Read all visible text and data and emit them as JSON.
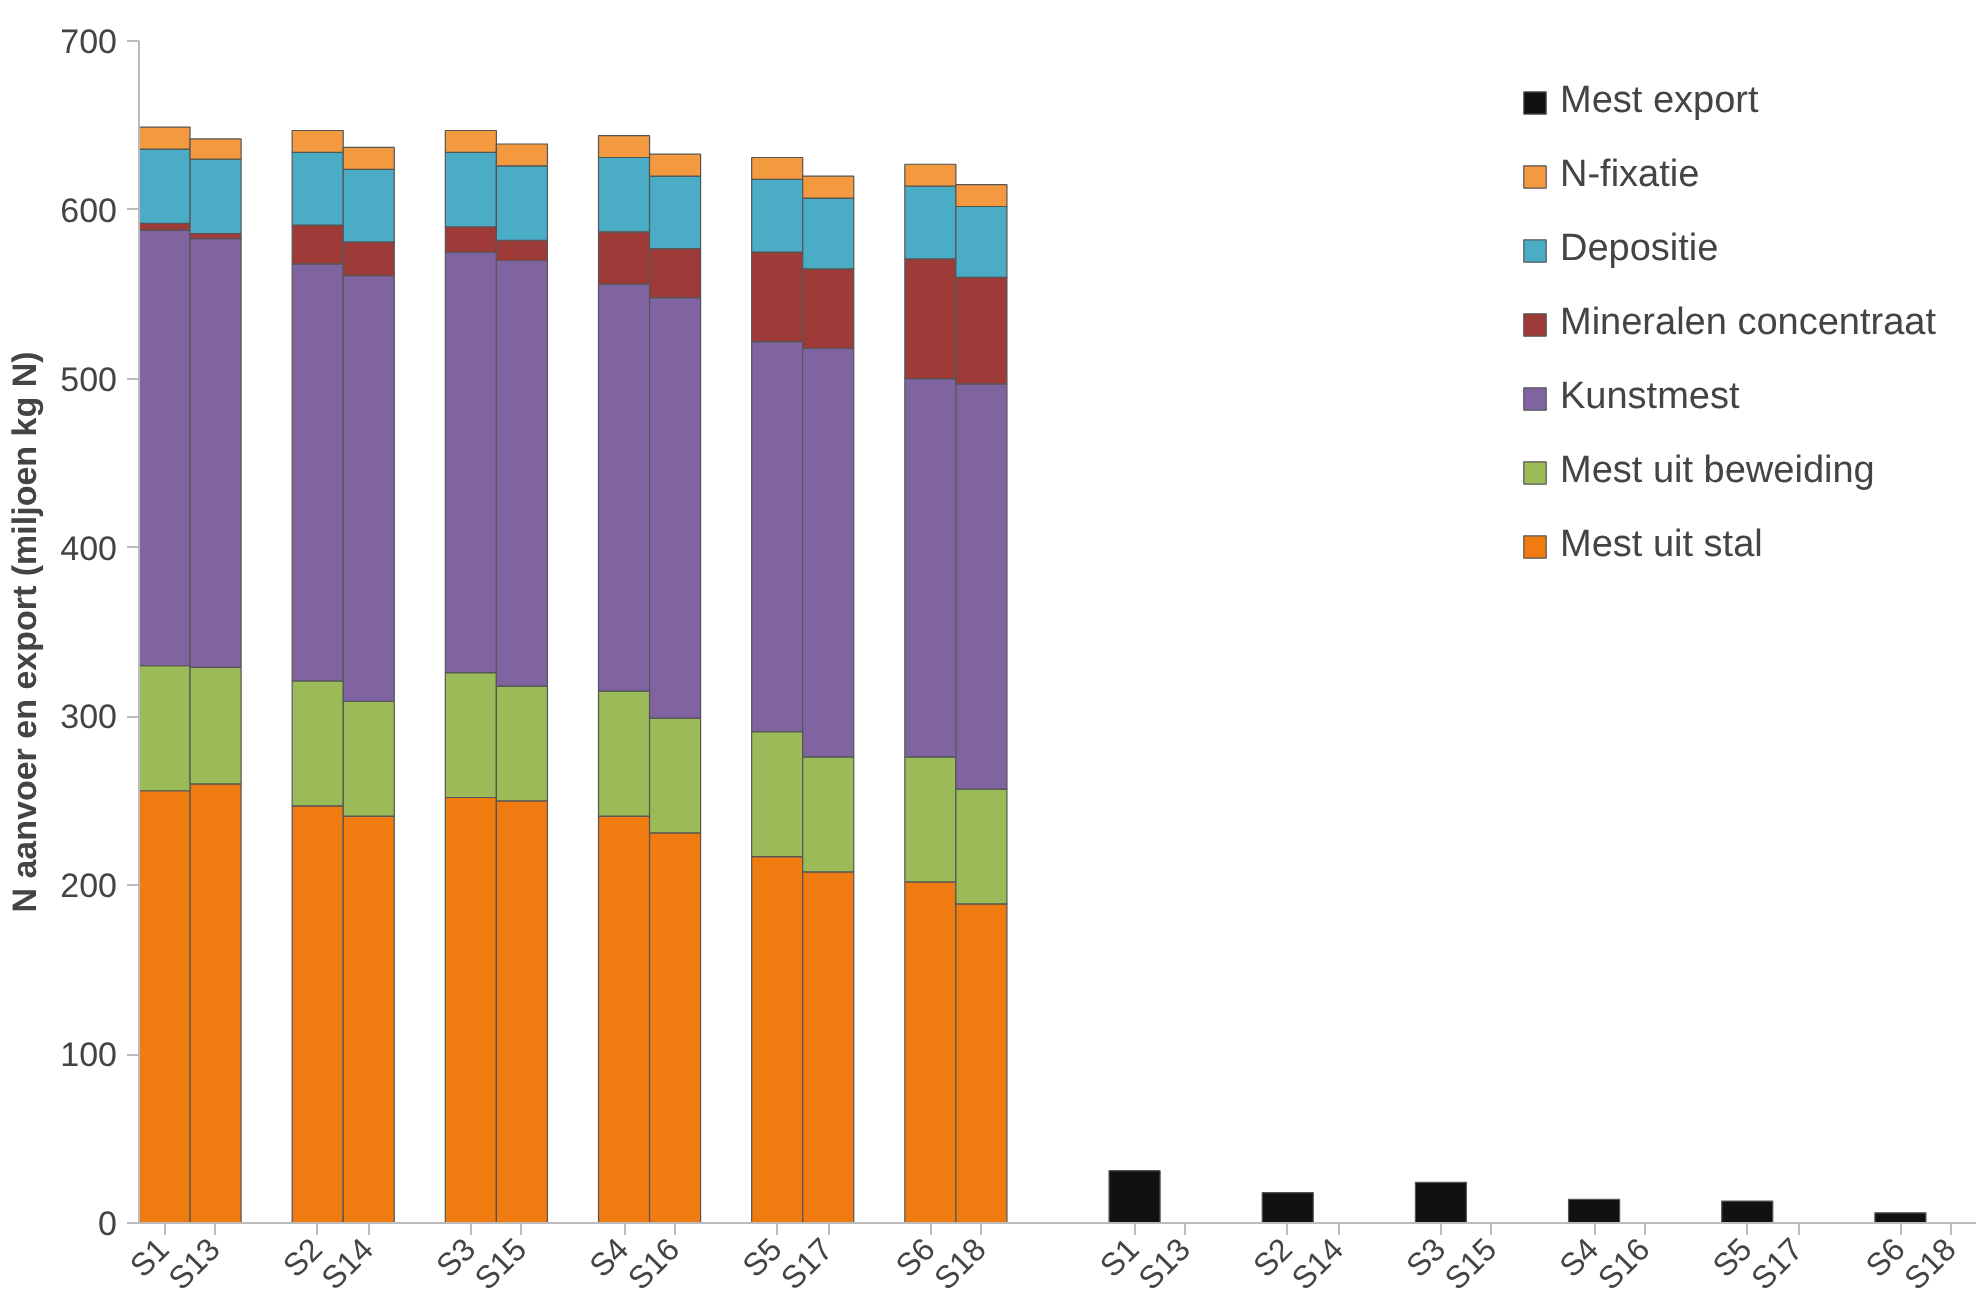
{
  "chart_data": {
    "type": "bar",
    "stacked": true,
    "ylabel": "N aanvoer en export (miljoen kg N)",
    "categories": [
      "S1",
      "S13",
      null,
      "S2",
      "S14",
      null,
      "S3",
      "S15",
      null,
      "S4",
      "S16",
      null,
      "S5",
      "S17",
      null,
      "S6",
      "S18",
      null,
      null,
      "S1",
      "S13",
      null,
      "S2",
      "S14",
      null,
      "S3",
      "S15",
      null,
      "S4",
      "S16",
      null,
      "S5",
      "S17",
      null,
      "S6",
      "S18"
    ],
    "series": [
      {
        "name": "Mest uit stal",
        "color": "#f07b10",
        "values": [
          256,
          260,
          null,
          247,
          241,
          null,
          252,
          250,
          null,
          241,
          231,
          null,
          217,
          208,
          null,
          202,
          189,
          null,
          null,
          null,
          null,
          null,
          null,
          null,
          null,
          null,
          null,
          null,
          null,
          null,
          null,
          null,
          null,
          null,
          null,
          null
        ]
      },
      {
        "name": "Mest uit beweiding",
        "color": "#9bbb59",
        "values": [
          74,
          69,
          null,
          74,
          68,
          null,
          74,
          68,
          null,
          74,
          68,
          null,
          74,
          68,
          null,
          74,
          68,
          null,
          null,
          null,
          null,
          null,
          null,
          null,
          null,
          null,
          null,
          null,
          null,
          null,
          null,
          null,
          null,
          null,
          null,
          null
        ]
      },
      {
        "name": "Kunstmest",
        "color": "#8064a2",
        "values": [
          258,
          254,
          null,
          247,
          252,
          null,
          249,
          252,
          null,
          241,
          249,
          null,
          231,
          242,
          null,
          224,
          240,
          null,
          null,
          null,
          null,
          null,
          null,
          null,
          null,
          null,
          null,
          null,
          null,
          null,
          null,
          null,
          null,
          null,
          null,
          null
        ]
      },
      {
        "name": "Mineralen concentraat",
        "color": "#9e3b38",
        "values": [
          4,
          3,
          null,
          23,
          20,
          null,
          15,
          12,
          null,
          31,
          29,
          null,
          53,
          47,
          null,
          71,
          63,
          null,
          null,
          null,
          null,
          null,
          null,
          null,
          null,
          null,
          null,
          null,
          null,
          null,
          null,
          null,
          null,
          null,
          null,
          null
        ]
      },
      {
        "name": "Depositie",
        "color": "#4bacc6",
        "values": [
          44,
          44,
          null,
          43,
          43,
          null,
          44,
          44,
          null,
          44,
          43,
          null,
          43,
          42,
          null,
          43,
          42,
          null,
          null,
          null,
          null,
          null,
          null,
          null,
          null,
          null,
          null,
          null,
          null,
          null,
          null,
          null,
          null,
          null,
          null,
          null
        ]
      },
      {
        "name": "N-fixatie",
        "color": "#f39a40",
        "values": [
          13,
          12,
          null,
          13,
          13,
          null,
          13,
          13,
          null,
          13,
          13,
          null,
          13,
          13,
          null,
          13,
          13,
          null,
          null,
          null,
          null,
          null,
          null,
          null,
          null,
          null,
          null,
          null,
          null,
          null,
          null,
          null,
          null,
          null,
          null,
          null
        ]
      },
      {
        "name": "Mest export",
        "color": "#111111",
        "values": [
          null,
          null,
          null,
          null,
          null,
          null,
          null,
          null,
          null,
          null,
          null,
          null,
          null,
          null,
          null,
          null,
          null,
          null,
          null,
          31,
          null,
          null,
          18,
          null,
          null,
          24,
          null,
          null,
          14,
          null,
          null,
          13,
          null,
          null,
          6,
          null
        ]
      }
    ],
    "ylim": [
      0,
      700
    ],
    "yticks": [
      0,
      100,
      200,
      300,
      400,
      500,
      600,
      700
    ],
    "grid": false,
    "legend": "top right"
  }
}
